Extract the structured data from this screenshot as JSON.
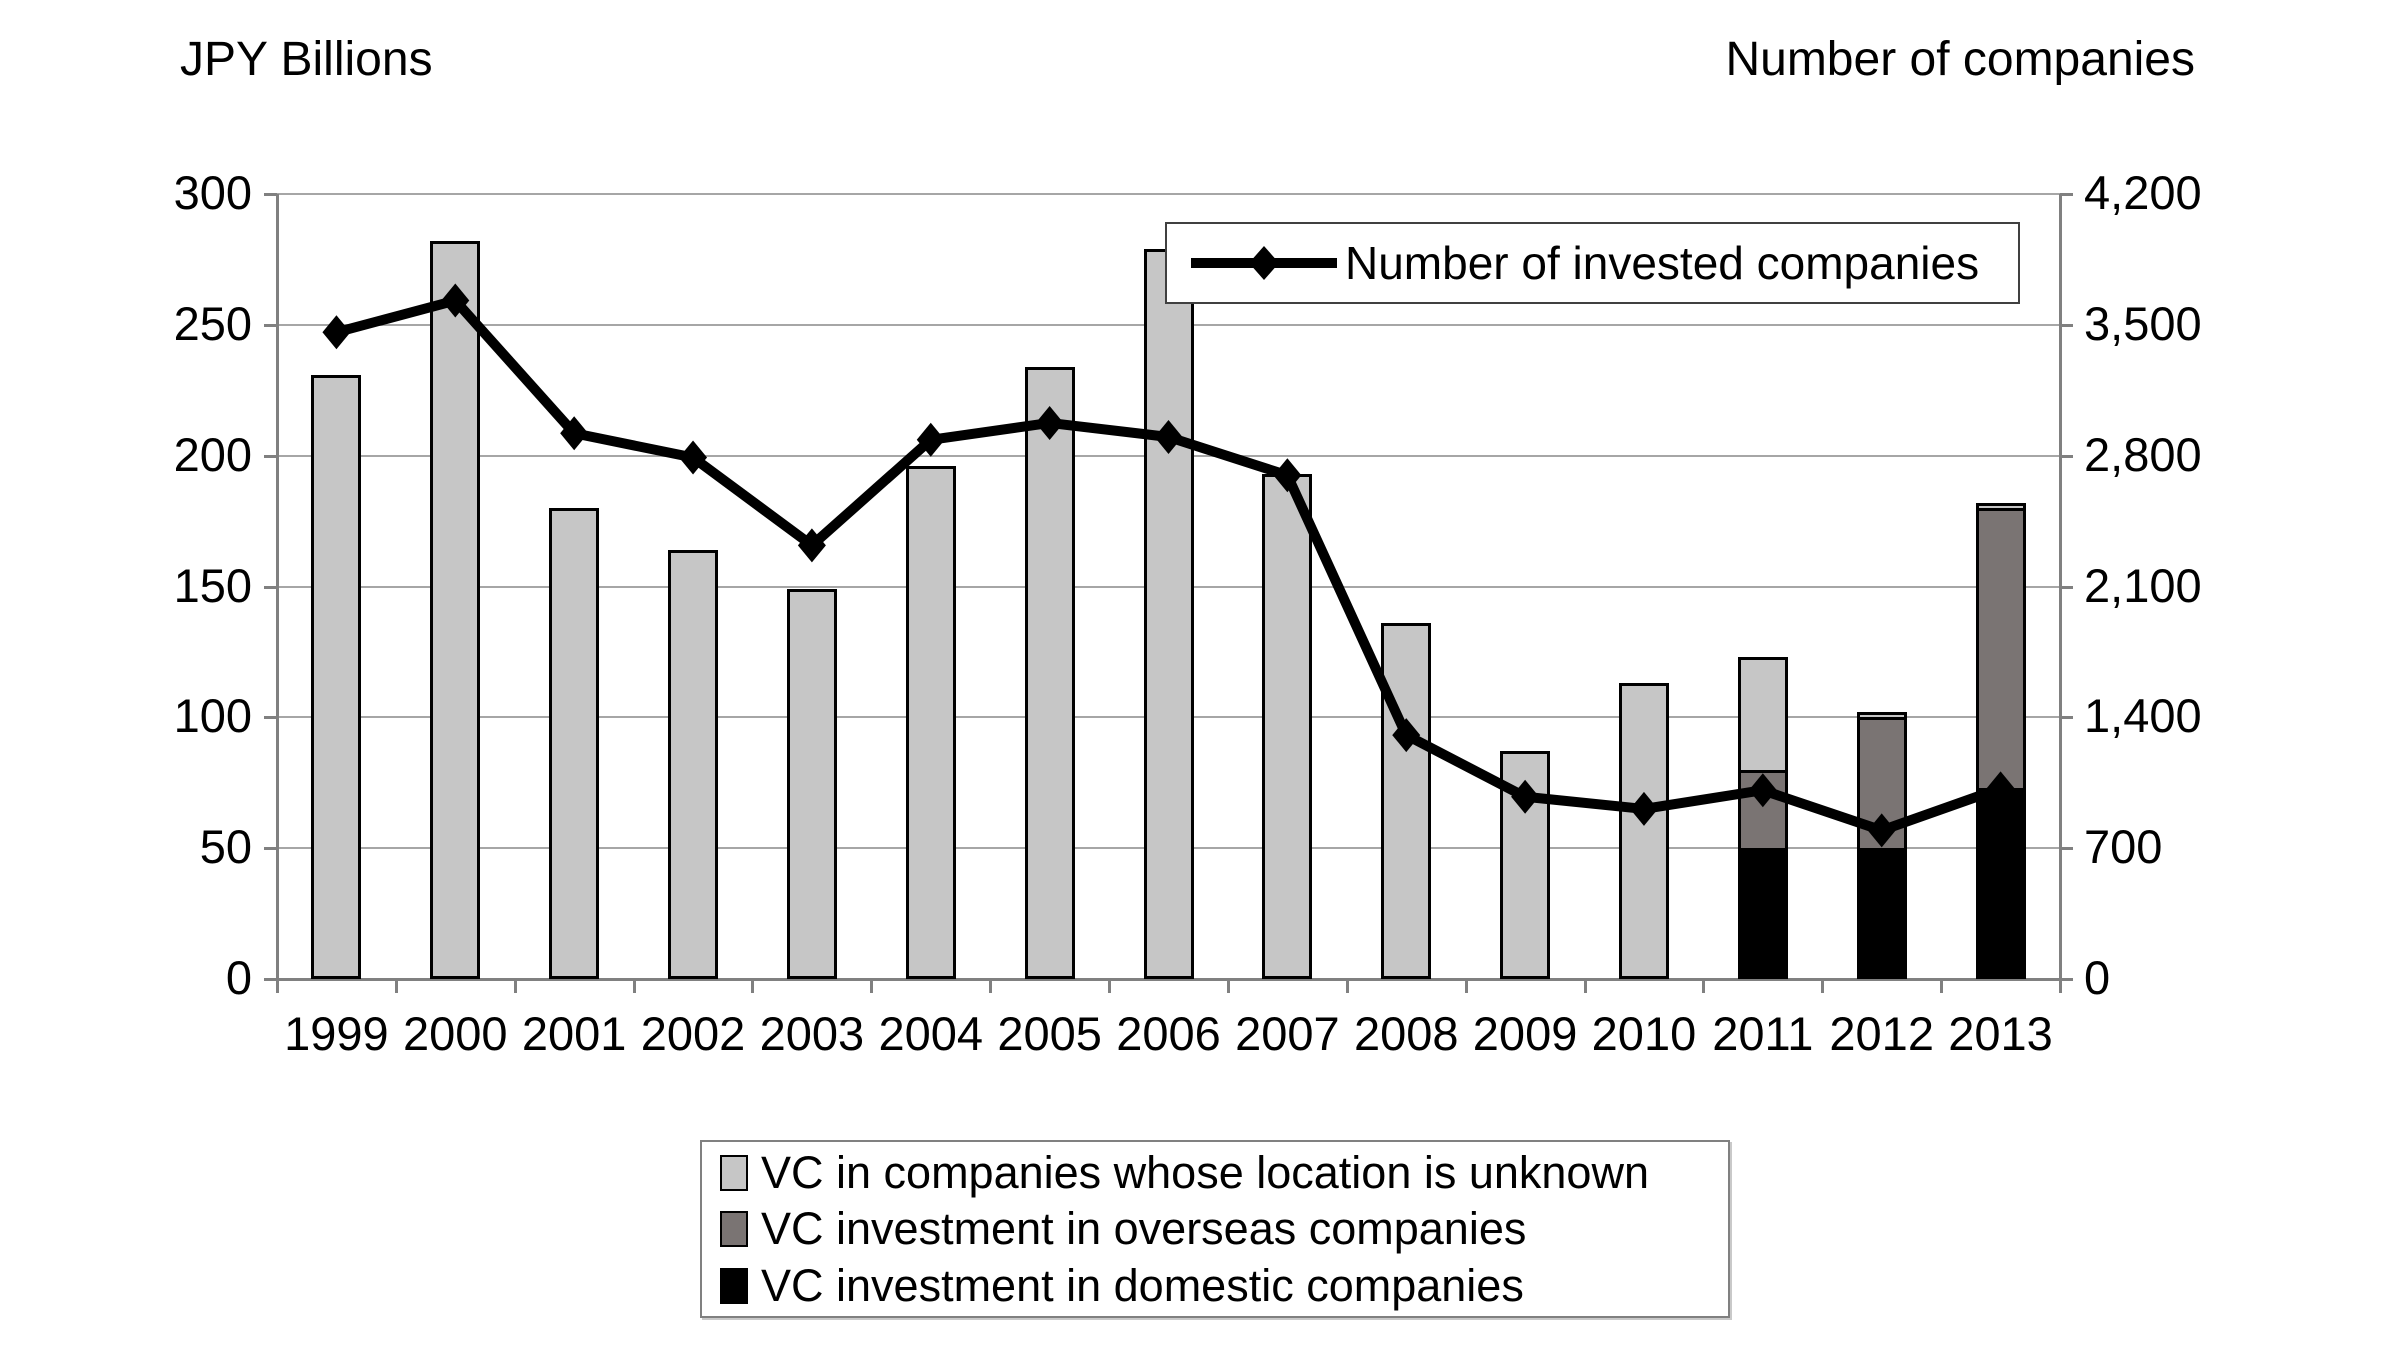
{
  "titles": {
    "left_axis_title": "JPY Billions",
    "right_axis_title": "Number of companies"
  },
  "line_legend": {
    "label": "Number of invested companies"
  },
  "bar_legend": {
    "items": [
      {
        "key": "unknown",
        "label": "VC in companies whose location is unknown",
        "color": "#c6c6c6"
      },
      {
        "key": "overseas",
        "label": "VC investment in overseas companies",
        "color": "#7a7473"
      },
      {
        "key": "domestic",
        "label": "VC investment in domestic companies",
        "color": "#000000"
      }
    ]
  },
  "colors": {
    "background": "#ffffff",
    "gridline": "#a6a6a6",
    "axis_line": "#808080",
    "text": "#000000",
    "bar_border": "#000000",
    "line_series": "#000000"
  },
  "chart_data": {
    "type": "bar",
    "subtype": "stacked-bars-with-line-overlay",
    "title": "",
    "categories": [
      "1999",
      "2000",
      "2001",
      "2002",
      "2003",
      "2004",
      "2005",
      "2006",
      "2007",
      "2008",
      "2009",
      "2010",
      "2011",
      "2012",
      "2013"
    ],
    "series": [
      {
        "name": "VC investment in domestic companies",
        "key": "domestic",
        "kind": "bar",
        "axis": "left",
        "color": "#000000",
        "values": [
          0,
          0,
          0,
          0,
          0,
          0,
          0,
          0,
          0,
          0,
          0,
          0,
          50,
          50,
          73
        ]
      },
      {
        "name": "VC investment in overseas companies",
        "key": "overseas",
        "kind": "bar",
        "axis": "left",
        "color": "#7a7473",
        "values": [
          0,
          0,
          0,
          0,
          0,
          0,
          0,
          0,
          0,
          0,
          0,
          0,
          30,
          50,
          107
        ]
      },
      {
        "name": "VC in companies whose location is unknown",
        "key": "unknown",
        "kind": "bar",
        "axis": "left",
        "color": "#c6c6c6",
        "values": [
          231,
          282,
          180,
          164,
          149,
          196,
          234,
          279,
          193,
          136,
          87,
          113,
          43,
          2,
          2
        ]
      },
      {
        "name": "Number of invested companies",
        "key": "invested_companies",
        "kind": "line",
        "axis": "right",
        "color": "#000000",
        "values": [
          3460,
          3630,
          2920,
          2790,
          2320,
          2885,
          2975,
          2900,
          2695,
          1305,
          975,
          910,
          1010,
          795,
          1020
        ]
      }
    ],
    "bar_stack_order_bottom_to_top": [
      "domestic",
      "overseas",
      "unknown"
    ],
    "left_axis": {
      "label": "JPY Billions",
      "range": [
        0,
        300
      ],
      "tick_values": [
        0,
        50,
        100,
        150,
        200,
        250,
        300
      ],
      "tick_labels": [
        "0",
        "50",
        "100",
        "150",
        "200",
        "250",
        "300"
      ]
    },
    "right_axis": {
      "label": "Number of companies",
      "range": [
        0,
        4200
      ],
      "tick_values": [
        0,
        700,
        1400,
        2100,
        2800,
        3500,
        4200
      ],
      "tick_labels": [
        "0",
        "700",
        "1,400",
        "2,100",
        "2,800",
        "3,500",
        "4,200"
      ]
    },
    "grid": true,
    "legend_position_line": "top-right-inside-plot",
    "legend_position_bars": "bottom-center-below-plot"
  }
}
